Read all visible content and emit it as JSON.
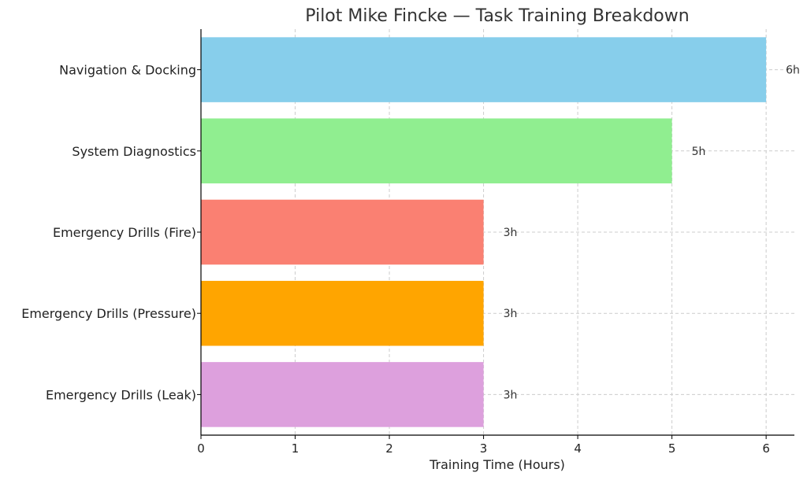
{
  "chart_data": {
    "type": "bar",
    "orientation": "horizontal",
    "title": "Pilot Mike Fincke — Task Training Breakdown",
    "xlabel": "Training Time (Hours)",
    "ylabel": "",
    "xlim": [
      0,
      6.3
    ],
    "xticks": [
      0,
      1,
      2,
      3,
      4,
      5,
      6
    ],
    "categories": [
      "Navigation & Docking",
      "System Diagnostics",
      "Emergency Drills (Fire)",
      "Emergency Drills (Pressure)",
      "Emergency Drills (Leak)"
    ],
    "values": [
      6,
      5,
      3,
      3,
      3
    ],
    "data_labels": [
      "6h",
      "5h",
      "3h",
      "3h",
      "3h"
    ],
    "colors": [
      "#87ceeb",
      "#90ee90",
      "#fa8072",
      "#ffa500",
      "#dda0dd"
    ],
    "grid": true,
    "legend": "none"
  }
}
